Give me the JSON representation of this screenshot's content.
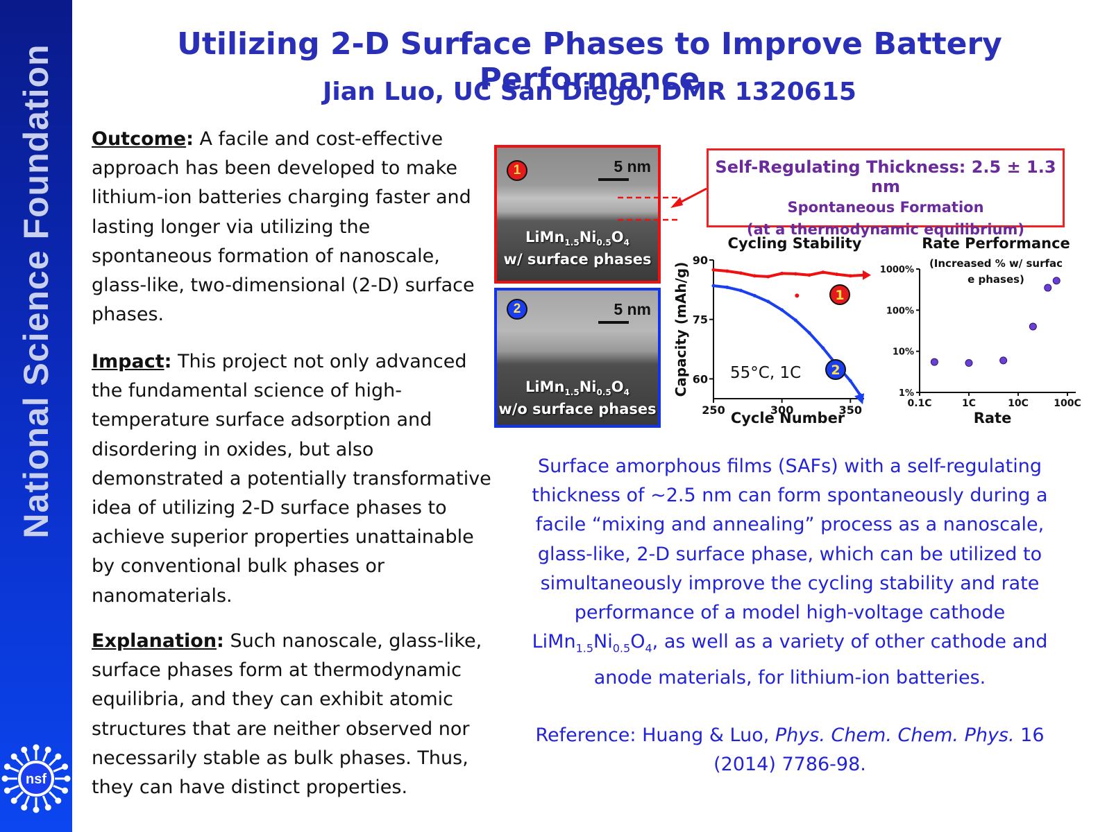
{
  "sidebar": {
    "label": "National Science Foundation",
    "logo_text": "nsf"
  },
  "header": {
    "title": "Utilizing 2-D Surface Phases to Improve Battery Performance",
    "subtitle": "Jian Luo, UC San Diego, DMR 1320615"
  },
  "outcome": {
    "heading": "Outcome",
    "text": " A facile and cost-effective approach has been developed to make lithium-ion batteries charging faster and lasting longer via utilizing the spontaneous formation of nanoscale, glass-like, two-dimensional (2-D) surface phases."
  },
  "impact": {
    "heading": "Impact",
    "text": " This project not only advanced the fundamental science of high-temperature surface adsorption and disordering in oxides, but also demonstrated a potentially transformative idea of utilizing 2-D surface phases to  achieve superior properties unattainable by conventional bulk phases or nanomaterials."
  },
  "explanation": {
    "heading": "Explanation",
    "text": " Such nanoscale, glass-like, surface phases form at thermodynamic equilibria, and they can exhibit atomic structures that are neither observed nor necessarily stable as bulk phases. Thus, they can have distinct properties."
  },
  "tem_images": [
    {
      "badge": "1",
      "scale": "5 nm",
      "formula": "LiMn1.5Ni0.5O4",
      "caption": "w/ surface phases"
    },
    {
      "badge": "2",
      "scale": "5 nm",
      "formula": "LiMn1.5Ni0.5O4",
      "caption": "w/o surface phases"
    }
  ],
  "callout": {
    "title": "Self-Regulating Thickness: 2.5 ± 1.3 nm",
    "line1": "Spontaneous Formation",
    "line2": "(at a thermodynamic equilibrium)"
  },
  "chart_data": [
    {
      "type": "line",
      "title": "Cycling Stability",
      "xlabel": "Cycle Number",
      "ylabel": "Capacity (mAh/g)",
      "xlim": [
        250,
        360
      ],
      "ylim": [
        55,
        90
      ],
      "xticks": [
        250,
        300,
        350
      ],
      "yticks": [
        60,
        75,
        90
      ],
      "annotation": "55°C, 1C",
      "series": [
        {
          "name": "1",
          "color": "#ee1111",
          "points": [
            [
              250,
              87.5
            ],
            [
              260,
              87.2
            ],
            [
              270,
              86.7
            ],
            [
              280,
              86.0
            ],
            [
              290,
              85.8
            ],
            [
              300,
              86.6
            ],
            [
              310,
              86.5
            ],
            [
              320,
              86.2
            ],
            [
              330,
              86.9
            ],
            [
              340,
              86.4
            ],
            [
              350,
              86.0
            ],
            [
              360,
              86.2
            ]
          ]
        },
        {
          "name": "2",
          "color": "#1a3ff0",
          "points": [
            [
              250,
              83.5
            ],
            [
              260,
              83.1
            ],
            [
              270,
              82.3
            ],
            [
              280,
              81.0
            ],
            [
              290,
              79.5
            ],
            [
              300,
              77.4
            ],
            [
              310,
              74.8
            ],
            [
              320,
              71.6
            ],
            [
              330,
              67.8
            ],
            [
              340,
              63.5
            ],
            [
              350,
              59.5
            ],
            [
              357,
              56.0
            ]
          ]
        }
      ]
    },
    {
      "type": "scatter",
      "title": "Rate Performance",
      "subtitle": "(Increased % w/ surface phases)",
      "xlabel": "Rate",
      "ylabel": "",
      "x_scale": "log",
      "y_scale": "log",
      "xticks": [
        "0.1C",
        "1C",
        "10C",
        "100C"
      ],
      "yticks": [
        "1%",
        "10%",
        "100%",
        "1000%"
      ],
      "color": "#6b3fcf",
      "points": [
        [
          0.2,
          5.5
        ],
        [
          1,
          5.2
        ],
        [
          5,
          6.0
        ],
        [
          20,
          40
        ],
        [
          40,
          350
        ],
        [
          60,
          520
        ]
      ]
    }
  ],
  "summary": {
    "part1": "Surface amorphous films (SAFs) with a self-regulating thickness of ~2.5 nm can form spontaneously during a facile “mixing and annealing” process as a nanoscale, glass-like, 2-D surface phase, which can be utilized to simultaneously improve the cycling stability and rate performance of a model high-voltage cathode ",
    "formula": "LiMn1.5Ni0.5O4",
    "part2": ", as well as a variety of other cathode and anode materials, for lithium-ion batteries."
  },
  "reference": {
    "prefix": "Reference: Huang & Luo, ",
    "journal": "Phys. Chem. Chem. Phys.",
    "suffix": " 16 (2014) 7786-98."
  }
}
